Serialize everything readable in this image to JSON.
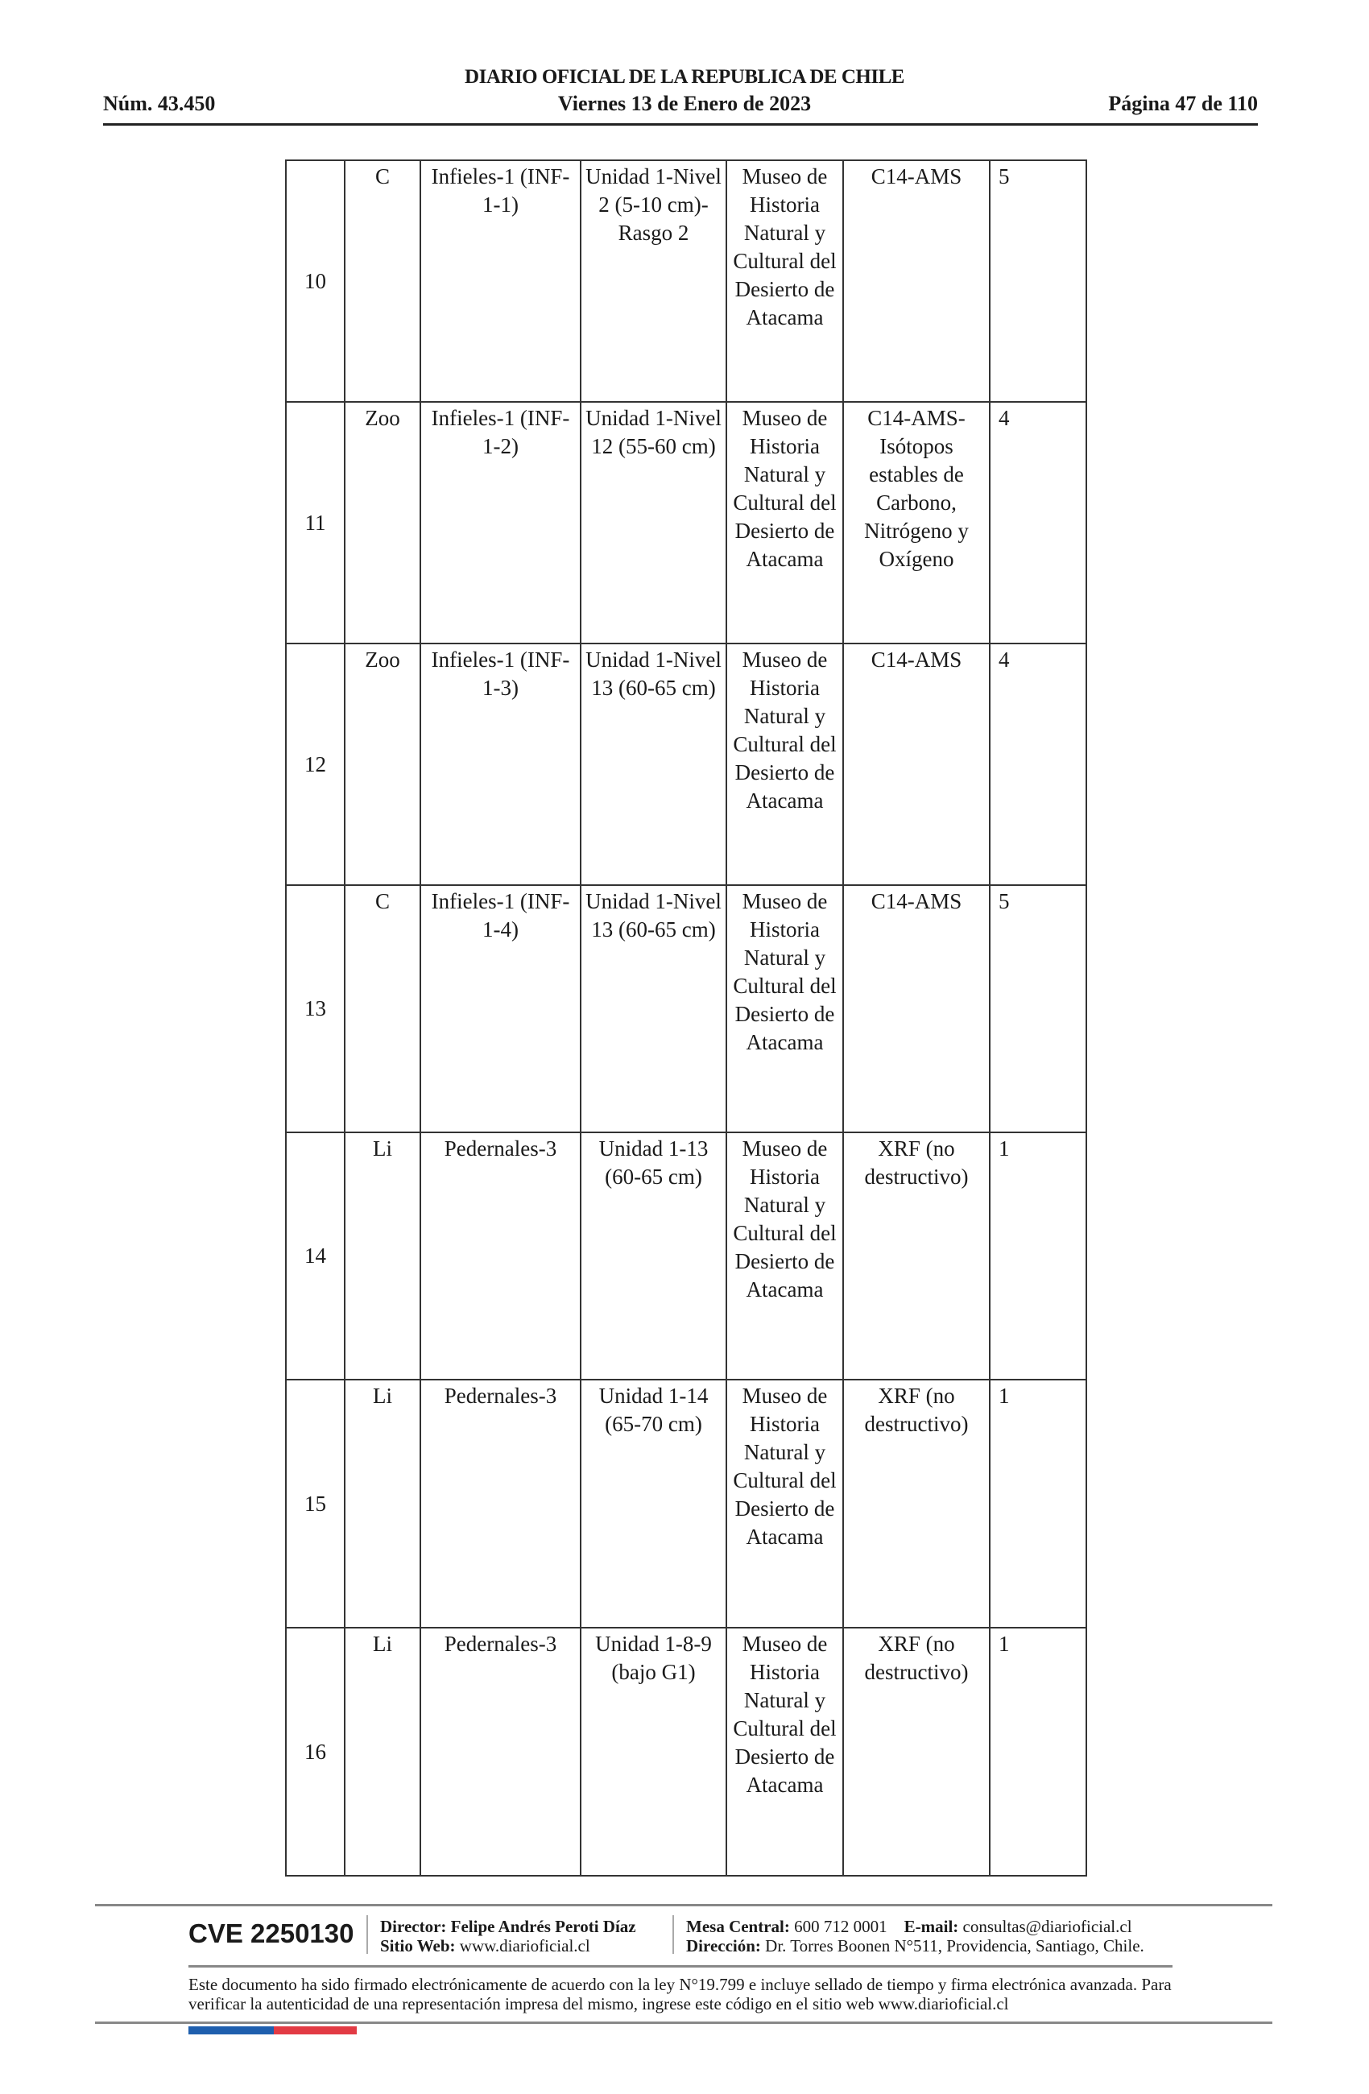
{
  "header": {
    "title": "DIARIO OFICIAL DE LA REPUBLICA DE CHILE",
    "number": "Núm. 43.450",
    "date": "Viernes 13 de Enero de 2023",
    "page": "Página 47 de 110"
  },
  "table": {
    "rows": [
      {
        "n": "10",
        "type": "C",
        "site": "Infieles-1 (INF-1-1)",
        "context": "Unidad 1-Nivel 2 (5-10 cm)-Rasgo 2",
        "museum": "Museo de Historia Natural y Cultural del Desierto de Atacama",
        "analysis": "C14-AMS",
        "qty": "5"
      },
      {
        "n": "11",
        "type": "Zoo",
        "site": "Infieles-1 (INF-1-2)",
        "context": "Unidad 1-Nivel 12 (55-60 cm)",
        "museum": "Museo de Historia Natural y Cultural del Desierto de Atacama",
        "analysis": "C14-AMS-Isótopos estables de Carbono, Nitrógeno y Oxígeno",
        "qty": "4"
      },
      {
        "n": "12",
        "type": "Zoo",
        "site": "Infieles-1 (INF-1-3)",
        "context": "Unidad 1-Nivel 13 (60-65 cm)",
        "museum": "Museo de Historia Natural y Cultural del Desierto de Atacama",
        "analysis": "C14-AMS",
        "qty": "4"
      },
      {
        "n": "13",
        "type": "C",
        "site": "Infieles-1 (INF-1-4)",
        "context": "Unidad 1-Nivel 13 (60-65 cm)",
        "museum": "Museo de Historia Natural y Cultural del Desierto de Atacama",
        "analysis": "C14-AMS",
        "qty": "5"
      },
      {
        "n": "14",
        "type": "Li",
        "site": "Pedernales-3",
        "context": "Unidad 1-13 (60-65 cm)",
        "museum": "Museo de Historia Natural y Cultural del Desierto de Atacama",
        "analysis": "XRF (no destructivo)",
        "qty": "1"
      },
      {
        "n": "15",
        "type": "Li",
        "site": "Pedernales-3",
        "context": "Unidad 1-14 (65-70 cm)",
        "museum": "Museo de Historia Natural y Cultural del Desierto de Atacama",
        "analysis": "XRF (no destructivo)",
        "qty": "1"
      },
      {
        "n": "16",
        "type": "Li",
        "site": "Pedernales-3",
        "context": "Unidad 1-8-9 (bajo G1)",
        "museum": "Museo de Historia Natural y Cultural del Desierto de Atacama",
        "analysis": "XRF (no destructivo)",
        "qty": "1"
      }
    ]
  },
  "footer": {
    "cve": "CVE 2250130",
    "director_label": "Director:",
    "director": "Felipe Andrés Peroti Díaz",
    "web_label": "Sitio Web:",
    "web": "www.diarioficial.cl",
    "phone_label": "Mesa Central:",
    "phone": "600 712 0001",
    "email_label": "E-mail:",
    "email": "consultas@diarioficial.cl",
    "address_label": "Dirección:",
    "address": "Dr. Torres Boonen N°511, Providencia, Santiago, Chile.",
    "disclaimer": "Este documento ha sido firmado electrónicamente de acuerdo con la ley N°19.799 e incluye sellado de tiempo y firma electrónica avanzada. Para verificar la autenticidad de una representación impresa del mismo, ingrese este código en el sitio web www.diarioficial.cl"
  },
  "colors": {
    "flag_blue": "#1f5fae",
    "flag_red": "#e23b44"
  }
}
